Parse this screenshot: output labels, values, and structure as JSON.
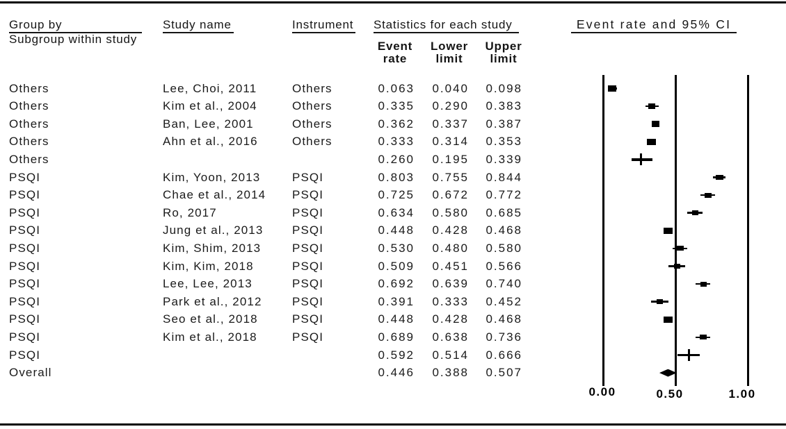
{
  "header": {
    "group_by_label": "Group by",
    "group_by_sublabel": "Subgroup within study",
    "study_label": "Study name",
    "instrument_label": "Instrument",
    "statistics_label": "Statistics for each study",
    "plot_label": "Event rate and 95% CI",
    "stat_subheaders": [
      {
        "line1": "Event",
        "line2": "rate"
      },
      {
        "line1": "Lower",
        "line2": "limit"
      },
      {
        "line1": "Upper",
        "line2": "limit"
      }
    ]
  },
  "colors": {
    "ink": "#000000",
    "background": "#ffffff"
  },
  "chart_data": {
    "type": "scatter",
    "subtype": "forest_plot",
    "title": "Event rate and 95% CI",
    "x_axis": {
      "min": 0,
      "max": 1,
      "tick_labels": [
        "0.00",
        "0.50",
        "1.00"
      ],
      "tick_values": [
        0,
        0.5,
        1
      ],
      "gridlines_at": [
        0,
        0.5,
        1
      ]
    },
    "rows": [
      {
        "group": "Others",
        "study": "Lee, Choi, 2011",
        "instrument": "Others",
        "event_rate": "0.063",
        "lower": "0.040",
        "upper": "0.098",
        "kind": "study"
      },
      {
        "group": "Others",
        "study": "Kim et al., 2004",
        "instrument": "Others",
        "event_rate": "0.335",
        "lower": "0.290",
        "upper": "0.383",
        "kind": "study"
      },
      {
        "group": "Others",
        "study": "Ban, Lee, 2001",
        "instrument": "Others",
        "event_rate": "0.362",
        "lower": "0.337",
        "upper": "0.387",
        "kind": "study"
      },
      {
        "group": "Others",
        "study": "Ahn et al., 2016",
        "instrument": "Others",
        "event_rate": "0.333",
        "lower": "0.314",
        "upper": "0.353",
        "kind": "study"
      },
      {
        "group": "Others",
        "study": "",
        "instrument": "",
        "event_rate": "0.260",
        "lower": "0.195",
        "upper": "0.339",
        "kind": "subgroup"
      },
      {
        "group": "PSQI",
        "study": "Kim, Yoon, 2013",
        "instrument": "PSQI",
        "event_rate": "0.803",
        "lower": "0.755",
        "upper": "0.844",
        "kind": "study"
      },
      {
        "group": "PSQI",
        "study": "Chae et al., 2014",
        "instrument": "PSQI",
        "event_rate": "0.725",
        "lower": "0.672",
        "upper": "0.772",
        "kind": "study"
      },
      {
        "group": "PSQI",
        "study": "Ro, 2017",
        "instrument": "PSQI",
        "event_rate": "0.634",
        "lower": "0.580",
        "upper": "0.685",
        "kind": "study"
      },
      {
        "group": "PSQI",
        "study": "Jung et al., 2013",
        "instrument": "PSQI",
        "event_rate": "0.448",
        "lower": "0.428",
        "upper": "0.468",
        "kind": "study"
      },
      {
        "group": "PSQI",
        "study": "Kim, Shim, 2013",
        "instrument": "PSQI",
        "event_rate": "0.530",
        "lower": "0.480",
        "upper": "0.580",
        "kind": "study"
      },
      {
        "group": "PSQI",
        "study": "Kim, Kim, 2018",
        "instrument": "PSQI",
        "event_rate": "0.509",
        "lower": "0.451",
        "upper": "0.566",
        "kind": "study"
      },
      {
        "group": "PSQI",
        "study": "Lee, Lee, 2013",
        "instrument": "PSQI",
        "event_rate": "0.692",
        "lower": "0.639",
        "upper": "0.740",
        "kind": "study"
      },
      {
        "group": "PSQI",
        "study": "Park et al., 2012",
        "instrument": "PSQI",
        "event_rate": "0.391",
        "lower": "0.333",
        "upper": "0.452",
        "kind": "study"
      },
      {
        "group": "PSQI",
        "study": "Seo et al., 2018",
        "instrument": "PSQI",
        "event_rate": "0.448",
        "lower": "0.428",
        "upper": "0.468",
        "kind": "study"
      },
      {
        "group": "PSQI",
        "study": "Kim et al., 2018",
        "instrument": "PSQI",
        "event_rate": "0.689",
        "lower": "0.638",
        "upper": "0.736",
        "kind": "study"
      },
      {
        "group": "PSQI",
        "study": "",
        "instrument": "",
        "event_rate": "0.592",
        "lower": "0.514",
        "upper": "0.666",
        "kind": "subgroup"
      },
      {
        "group": "Overall",
        "study": "",
        "instrument": "",
        "event_rate": "0.446",
        "lower": "0.388",
        "upper": "0.507",
        "kind": "overall"
      }
    ]
  }
}
